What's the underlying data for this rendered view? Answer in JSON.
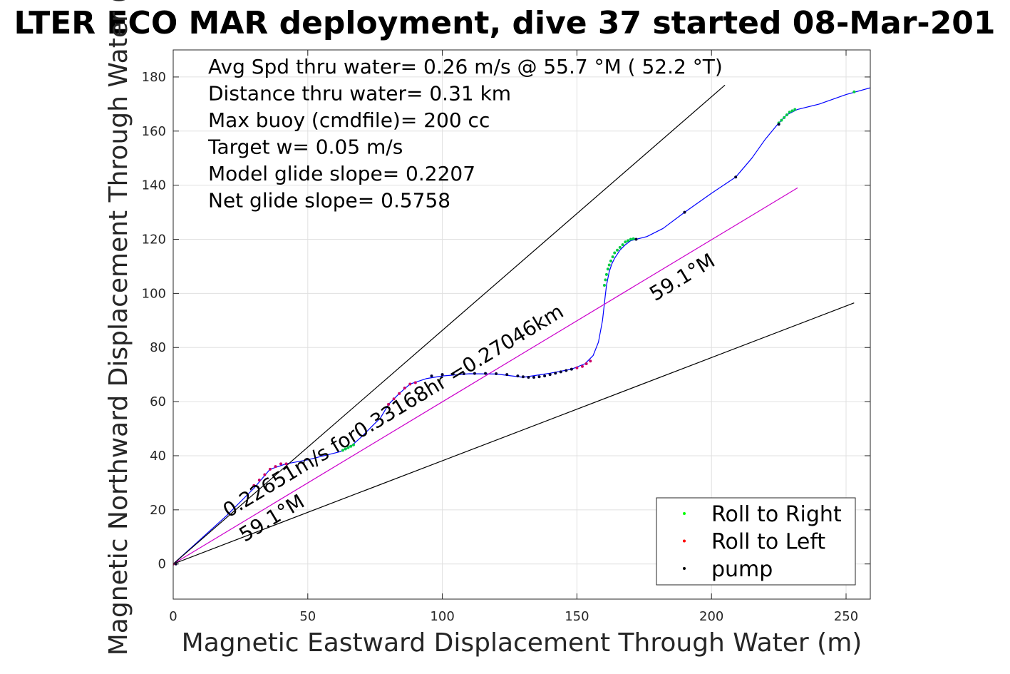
{
  "chart_data": {
    "type": "line",
    "title": "LTER ECO MAR deployment, dive 37 started 08-Mar-201",
    "xlabel": "Magnetic Eastward Displacement Through Water (m)",
    "ylabel": "Magnetic Northward Displacement Through Water (",
    "xlim": [
      0,
      259
    ],
    "ylim": [
      -13,
      190
    ],
    "xticks": [
      0,
      50,
      100,
      150,
      200,
      250
    ],
    "yticks": [
      0,
      20,
      40,
      60,
      80,
      100,
      120,
      140,
      160,
      180
    ],
    "grid": true,
    "stats": [
      "Avg Spd thru water=  0.26 m/s @  55.7 °M ( 52.2 °T)",
      "Distance thru water=  0.31 km",
      "Max buoy (cmdfile)= 200 cc",
      "Target w= 0.05 m/s",
      "Model glide slope= 0.2207",
      "Net glide slope= 0.5758"
    ],
    "annotations": {
      "segment_label": "0.22651m/s for0.33168hr =0.27046km",
      "heading_label_upper": "59.1°M",
      "heading_label_lower": "59.1°M"
    },
    "legend": {
      "placement": "bottom-right",
      "entries": [
        {
          "label": "Roll to Right",
          "color": "#00ff00"
        },
        {
          "label": "Roll to Left",
          "color": "#ff0000"
        },
        {
          "label": "pump",
          "color": "#000000"
        }
      ]
    },
    "series": [
      {
        "label": "",
        "role": "track",
        "color": "#0000ff",
        "x": [
          0,
          10,
          20,
          30,
          36,
          42,
          50,
          58,
          62,
          66,
          70,
          74,
          77,
          80,
          84,
          88,
          94,
          100,
          110,
          120,
          130,
          140,
          148,
          153,
          156,
          158,
          159.5,
          160.5,
          161,
          162,
          163,
          164,
          166,
          168,
          170,
          172,
          176,
          182,
          190,
          200,
          209,
          215,
          220,
          225,
          228,
          232,
          240,
          250,
          259
        ],
        "y": [
          0,
          9,
          18,
          28,
          35,
          37,
          38.5,
          40.5,
          41.5,
          43.5,
          47,
          51,
          54,
          59,
          63,
          66.5,
          68.5,
          69.5,
          70.3,
          70.2,
          69,
          70.5,
          72,
          74,
          77,
          82,
          90,
          99,
          103,
          108,
          111,
          113,
          116,
          118,
          119.5,
          120,
          121,
          124,
          130,
          137,
          143,
          150,
          157,
          163,
          166,
          168,
          170,
          173.5,
          176
        ]
      },
      {
        "label": "",
        "role": "reference",
        "color": "#cc00cc",
        "x": [
          0,
          232
        ],
        "y": [
          0,
          139
        ]
      },
      {
        "label": "",
        "role": "envelope",
        "color": "#000000",
        "x": [
          0,
          205
        ],
        "y": [
          0,
          177
        ]
      },
      {
        "label": "",
        "role": "envelope",
        "color": "#000000",
        "x": [
          0,
          253
        ],
        "y": [
          0,
          96.5
        ]
      }
    ],
    "markers": {
      "roll_right": {
        "color": "#00cc44",
        "x": [
          63,
          64,
          65,
          66,
          67,
          160.2,
          160.6,
          161,
          161.5,
          162,
          162.6,
          163.3,
          164,
          165,
          166,
          167,
          168,
          169,
          170,
          171,
          225,
          226,
          227,
          228,
          229,
          230,
          231,
          253
        ],
        "y": [
          42,
          42.5,
          43,
          43.5,
          44,
          103,
          105,
          107,
          109,
          110.5,
          112,
          113.5,
          115,
          116,
          117,
          118,
          119,
          119.5,
          120,
          120.2,
          163,
          164,
          165,
          166,
          167,
          167.5,
          168,
          174.5
        ]
      },
      "roll_left": {
        "color": "#cc0066",
        "x": [
          0,
          30,
          32,
          34,
          36,
          38,
          40,
          42,
          80,
          82,
          84,
          86,
          88,
          90,
          150,
          152,
          153.5,
          155
        ],
        "y": [
          0,
          29,
          31,
          33,
          35,
          36,
          37,
          37,
          59,
          61,
          63,
          65,
          66.5,
          67,
          72.5,
          73,
          74,
          75
        ]
      },
      "pump": {
        "color": "#000033",
        "x": [
          1,
          96,
          100,
          104,
          108,
          112,
          116,
          120,
          124,
          128,
          130,
          132,
          134,
          136,
          138,
          140,
          142,
          144,
          146,
          148,
          172,
          190,
          209,
          225
        ],
        "y": [
          0,
          69.5,
          70,
          70.2,
          70.3,
          70.4,
          70.4,
          70.3,
          70,
          69.5,
          69.2,
          69,
          69,
          69.2,
          69.5,
          70,
          70.5,
          71,
          71.5,
          72,
          120,
          130,
          143,
          162.5
        ]
      }
    }
  }
}
